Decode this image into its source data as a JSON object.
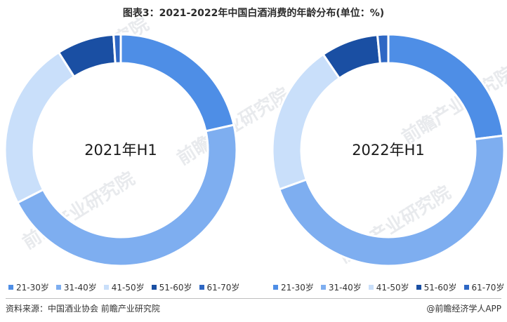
{
  "title": "图表3：2021-2022年中国白酒消费的年龄分布(单位：%)",
  "source": "资料来源：中国酒业协会 前瞻产业研究院",
  "brand": "@前瞻经济学人APP",
  "watermark": "前瞻产业研究院",
  "colors": {
    "21-30岁": "#4e8ee6",
    "31-40岁": "#7eaef0",
    "41-50岁": "#c9dffa",
    "51-60岁": "#1a4fa3",
    "61-70岁": "#2e67c4"
  },
  "chart_data": [
    {
      "type": "pie",
      "donut": true,
      "center_label": "2021年H1",
      "legend_position": "bottom",
      "categories": [
        "21-30岁",
        "31-40岁",
        "41-50岁",
        "51-60岁",
        "61-70岁"
      ],
      "values": [
        21.5,
        46.0,
        23.5,
        8.0,
        1.0
      ]
    },
    {
      "type": "pie",
      "donut": true,
      "center_label": "2022年H1",
      "legend_position": "bottom",
      "categories": [
        "21-30岁",
        "31-40岁",
        "41-50岁",
        "51-60岁",
        "61-70岁"
      ],
      "values": [
        23.0,
        46.5,
        21.0,
        8.0,
        1.5
      ]
    }
  ]
}
